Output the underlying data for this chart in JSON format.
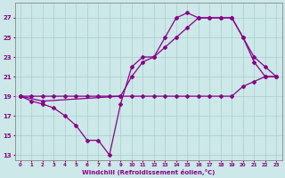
{
  "background_color": "#cce8e8",
  "grid_color": "#aacccc",
  "line_color": "#880088",
  "marker": "D",
  "markersize": 2.0,
  "linewidth": 0.9,
  "xlabel": "Windchill (Refroidissement éolien,°C)",
  "xlim": [
    -0.5,
    23.5
  ],
  "ylim": [
    12.5,
    28.5
  ],
  "xticks": [
    0,
    1,
    2,
    3,
    4,
    5,
    6,
    7,
    8,
    9,
    10,
    11,
    12,
    13,
    14,
    15,
    16,
    17,
    18,
    19,
    20,
    21,
    22,
    23
  ],
  "yticks": [
    13,
    15,
    17,
    19,
    21,
    23,
    25,
    27
  ],
  "line1_x": [
    0,
    1,
    2,
    3,
    4,
    5,
    6,
    7,
    8,
    9,
    10,
    11,
    12,
    13,
    14,
    15,
    16,
    17,
    18,
    19,
    20,
    21,
    22,
    23
  ],
  "line1_y": [
    19,
    19,
    19,
    19,
    19,
    19,
    19,
    19,
    19,
    19,
    19,
    19,
    19,
    19,
    19,
    19,
    19,
    19,
    19,
    19,
    20,
    20.5,
    21,
    21
  ],
  "line2_x": [
    0,
    1,
    2,
    3,
    4,
    5,
    6,
    7,
    8,
    9,
    10,
    11,
    12,
    13,
    14,
    15,
    16,
    17,
    18,
    19,
    20,
    21,
    22,
    23
  ],
  "line2_y": [
    19,
    18.5,
    18.2,
    17.8,
    17,
    16,
    14.5,
    14.5,
    13,
    18.2,
    22,
    23,
    23,
    25,
    27,
    27.5,
    27,
    27,
    27,
    27,
    25,
    23,
    22,
    21
  ],
  "line3_x": [
    0,
    2,
    9,
    10,
    11,
    12,
    13,
    14,
    15,
    16,
    17,
    18,
    19,
    20,
    21,
    22,
    23
  ],
  "line3_y": [
    19,
    18.5,
    19,
    21,
    22.5,
    23,
    24,
    25,
    26,
    27,
    27,
    27,
    27,
    25,
    22.5,
    21,
    21
  ]
}
